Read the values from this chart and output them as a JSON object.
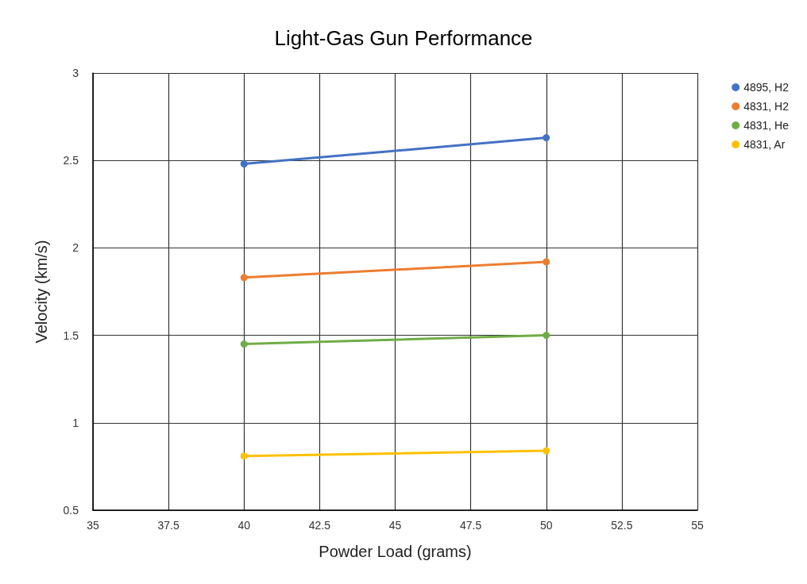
{
  "chart_data": {
    "type": "line",
    "title": "Light-Gas Gun Performance",
    "xlabel": "Powder Load (grams)",
    "ylabel": "Velocity (km/s)",
    "x": [
      40,
      50
    ],
    "series": [
      {
        "name": "4895, H2",
        "color": "#4472c4",
        "values": [
          2.48,
          2.63
        ]
      },
      {
        "name": "4831, H2",
        "color": "#ed7d31",
        "values": [
          1.83,
          1.92
        ]
      },
      {
        "name": "4831, He",
        "color": "#70ad47",
        "values": [
          1.45,
          1.5
        ]
      },
      {
        "name": "4831, Ar",
        "color": "#ffc000",
        "values": [
          0.81,
          0.84
        ]
      }
    ],
    "xlim": [
      35,
      55
    ],
    "xticks": [
      35,
      37.5,
      40,
      42.5,
      45,
      47.5,
      50,
      52.5,
      55
    ],
    "ylim": [
      0.5,
      3
    ],
    "yticks": [
      0.5,
      1,
      1.5,
      2,
      2.5,
      3
    ],
    "grid": true,
    "legend": "top right",
    "marker": "circle",
    "line_style": "solid"
  }
}
